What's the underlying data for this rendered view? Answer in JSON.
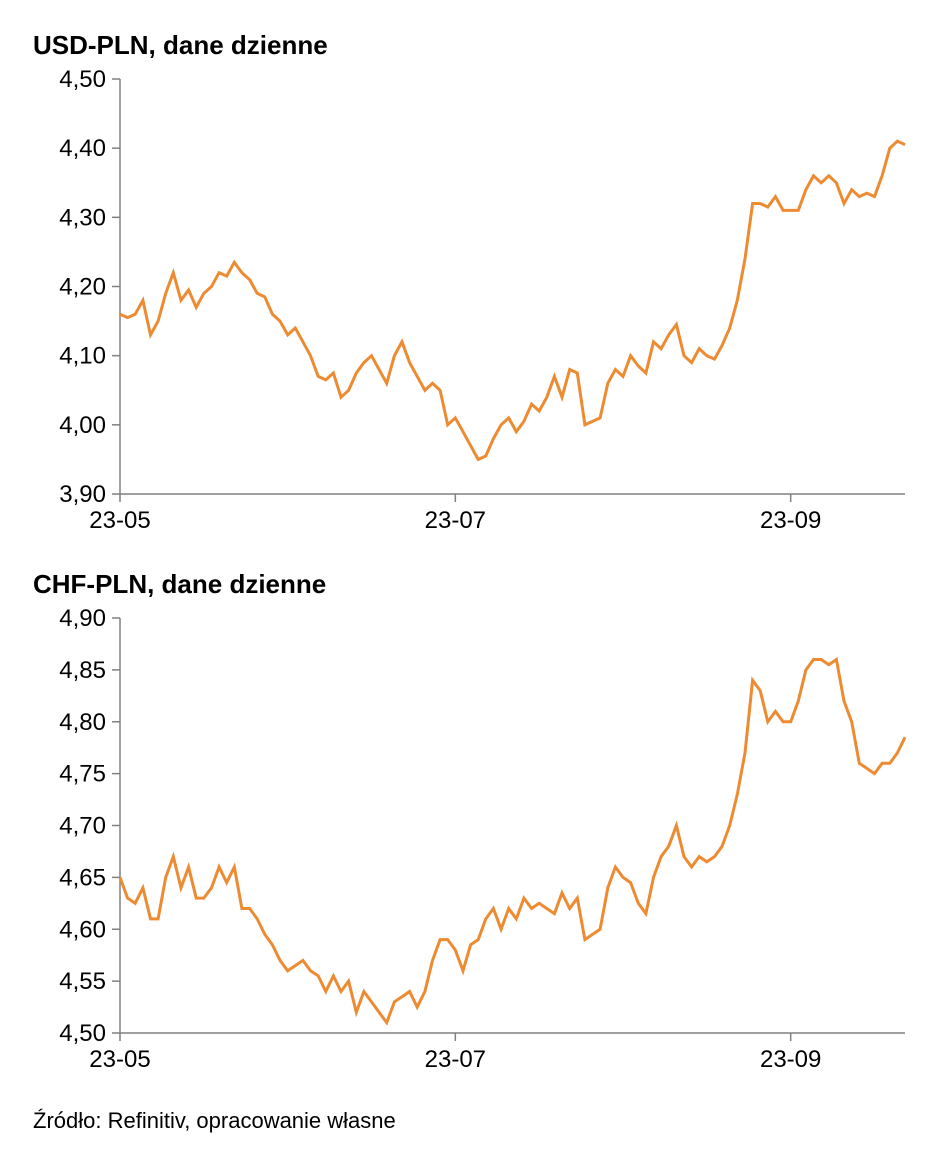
{
  "charts": [
    {
      "title": "USD-PLN, dane dzienne",
      "type": "line",
      "line_color": "#ed8b32",
      "line_width": 3,
      "background_color": "#ffffff",
      "axis_color": "#808080",
      "label_color": "#000000",
      "label_fontsize": 24,
      "title_fontsize": 26,
      "ylim": [
        3.9,
        4.5
      ],
      "yticks": [
        3.9,
        4.0,
        4.1,
        4.2,
        4.3,
        4.4,
        4.5
      ],
      "ytick_labels": [
        "3,90",
        "4,00",
        "4,10",
        "4,20",
        "4,30",
        "4,40",
        "4,50"
      ],
      "xtick_positions": [
        0,
        44,
        88
      ],
      "xtick_labels": [
        "23-05",
        "23-07",
        "23-09"
      ],
      "x_count": 104,
      "values": [
        4.16,
        4.155,
        4.16,
        4.18,
        4.13,
        4.15,
        4.19,
        4.22,
        4.18,
        4.195,
        4.17,
        4.19,
        4.2,
        4.22,
        4.215,
        4.235,
        4.22,
        4.21,
        4.19,
        4.185,
        4.16,
        4.15,
        4.13,
        4.14,
        4.12,
        4.1,
        4.07,
        4.065,
        4.075,
        4.04,
        4.05,
        4.075,
        4.09,
        4.1,
        4.08,
        4.06,
        4.1,
        4.12,
        4.09,
        4.07,
        4.05,
        4.06,
        4.05,
        4.0,
        4.01,
        3.99,
        3.97,
        3.95,
        3.955,
        3.98,
        4.0,
        4.01,
        3.99,
        4.005,
        4.03,
        4.02,
        4.04,
        4.07,
        4.04,
        4.08,
        4.075,
        4.0,
        4.005,
        4.01,
        4.06,
        4.08,
        4.07,
        4.1,
        4.085,
        4.075,
        4.12,
        4.11,
        4.13,
        4.145,
        4.1,
        4.09,
        4.11,
        4.1,
        4.095,
        4.115,
        4.14,
        4.18,
        4.24,
        4.32,
        4.32,
        4.315,
        4.33,
        4.31,
        4.31,
        4.31,
        4.34,
        4.36,
        4.35,
        4.36,
        4.35,
        4.32,
        4.34,
        4.33,
        4.335,
        4.33,
        4.36,
        4.4,
        4.41,
        4.405
      ]
    },
    {
      "title": "CHF-PLN, dane dzienne",
      "type": "line",
      "line_color": "#ed8b32",
      "line_width": 3,
      "background_color": "#ffffff",
      "axis_color": "#808080",
      "label_color": "#000000",
      "label_fontsize": 24,
      "title_fontsize": 26,
      "ylim": [
        4.5,
        4.9
      ],
      "yticks": [
        4.5,
        4.55,
        4.6,
        4.65,
        4.7,
        4.75,
        4.8,
        4.85,
        4.9
      ],
      "ytick_labels": [
        "4,50",
        "4,55",
        "4,60",
        "4,65",
        "4,70",
        "4,75",
        "4,80",
        "4,85",
        "4,90"
      ],
      "xtick_positions": [
        0,
        44,
        88
      ],
      "xtick_labels": [
        "23-05",
        "23-07",
        "23-09"
      ],
      "x_count": 104,
      "values": [
        4.65,
        4.63,
        4.625,
        4.64,
        4.61,
        4.61,
        4.65,
        4.67,
        4.64,
        4.66,
        4.63,
        4.63,
        4.64,
        4.66,
        4.645,
        4.66,
        4.62,
        4.62,
        4.61,
        4.595,
        4.585,
        4.57,
        4.56,
        4.565,
        4.57,
        4.56,
        4.555,
        4.54,
        4.555,
        4.54,
        4.55,
        4.52,
        4.54,
        4.53,
        4.52,
        4.51,
        4.53,
        4.535,
        4.54,
        4.525,
        4.54,
        4.57,
        4.59,
        4.59,
        4.58,
        4.56,
        4.585,
        4.59,
        4.61,
        4.62,
        4.6,
        4.62,
        4.61,
        4.63,
        4.62,
        4.625,
        4.62,
        4.615,
        4.635,
        4.62,
        4.63,
        4.59,
        4.595,
        4.6,
        4.64,
        4.66,
        4.65,
        4.645,
        4.625,
        4.615,
        4.65,
        4.67,
        4.68,
        4.7,
        4.67,
        4.66,
        4.67,
        4.665,
        4.67,
        4.68,
        4.7,
        4.73,
        4.77,
        4.84,
        4.83,
        4.8,
        4.81,
        4.8,
        4.8,
        4.82,
        4.85,
        4.86,
        4.86,
        4.855,
        4.86,
        4.82,
        4.8,
        4.76,
        4.755,
        4.75,
        4.76,
        4.76,
        4.77,
        4.785
      ]
    }
  ],
  "footer": "Źródło: Refinitiv, opracowanie własne"
}
